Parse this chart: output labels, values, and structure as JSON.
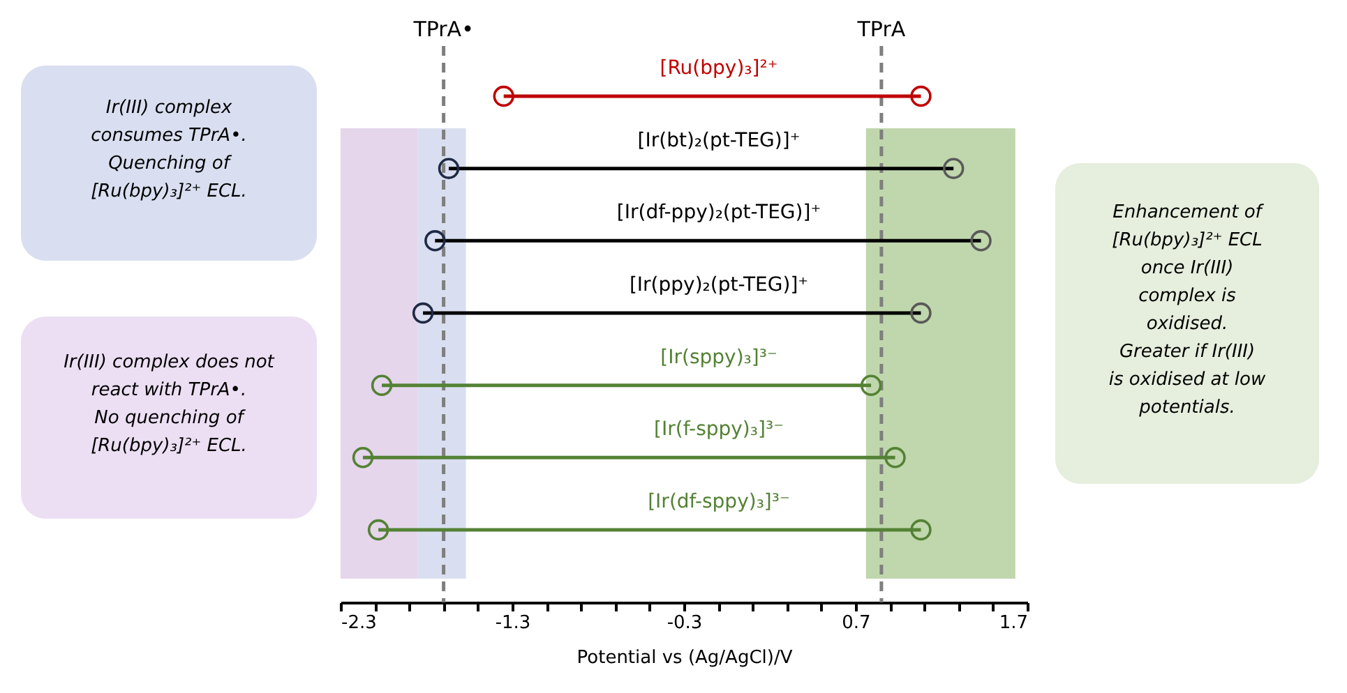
{
  "chart_data": {
    "type": "bar",
    "orientation": "horizontal",
    "marker": "circle",
    "tick_labels": "x",
    "categories": [
      "[Ru(bpy)₃]²⁺",
      "[Ir(bt)₂(pt-TEG)]⁺",
      "[Ir(df-ppy)₂(pt-TEG)]⁺",
      "[Ir(ppy)₂(pt-TEG)]⁺",
      "[Ir(sppy)₃]³⁻",
      "[Ir(f-sppy)₃]³⁻",
      "[Ir(df-sppy)₃]³⁻"
    ],
    "series": [
      {
        "base": [
          -1.35,
          -1.67,
          -1.75,
          -1.82,
          -2.06,
          -2.17,
          -2.08
        ],
        "values": [
          2.43,
          2.94,
          3.18,
          2.9,
          2.85,
          3.1,
          3.16
        ],
        "colors": [
          "#c00000",
          "#000000",
          "#000000",
          "#000000",
          "#548235",
          "#548235",
          "#548235"
        ]
      },
      {
        "type": "scatter",
        "values": [
          -1.35,
          -1.67,
          -1.75,
          -1.82,
          -2.06,
          -2.17,
          -2.08
        ],
        "colors": [
          "#c00000",
          "#1f2a44",
          "#1f2a44",
          "#1f2a44",
          "#548235",
          "#548235",
          "#548235"
        ]
      },
      {
        "type": "scatter",
        "values": [
          1.08,
          1.27,
          1.43,
          1.08,
          0.79,
          0.93,
          1.08
        ],
        "colors": [
          "#c00000",
          "#595959",
          "#595959",
          "#595959",
          "#548235",
          "#548235",
          "#548235"
        ]
      }
    ],
    "xlim": [
      -2.3,
      1.7
    ],
    "xticks": [
      -2.3,
      {
        "value": -2.1,
        "label": null
      },
      {
        "value": -1.9,
        "label": null
      },
      {
        "value": -1.7,
        "label": null
      },
      {
        "value": -1.5,
        "label": null
      },
      -1.3,
      {
        "value": -1.1,
        "label": null
      },
      {
        "value": -0.9,
        "label": null
      },
      {
        "value": -0.7,
        "label": null
      },
      {
        "value": -0.5,
        "label": null
      },
      -0.3,
      {
        "value": -0.1,
        "label": null
      },
      {
        "value": 0.1,
        "label": null
      },
      {
        "value": 0.3,
        "label": null
      },
      {
        "value": 0.5,
        "label": null
      },
      0.7,
      {
        "value": 0.9,
        "label": null
      },
      {
        "value": 1.1,
        "label": null
      },
      {
        "value": 1.3,
        "label": null
      },
      {
        "value": 1.5,
        "label": null
      },
      1.7
    ],
    "xlabel": "Potential vs (Ag/AgCl)/V",
    "ref_lines": [
      {
        "axis": "x",
        "value": -1.7,
        "label": "TPrA•",
        "color": "#7f7f7f",
        "line_style": "dashed"
      },
      {
        "axis": "x",
        "value": 0.85,
        "label": "TPrA",
        "color": "#7f7f7f",
        "line_style": "dashed"
      }
    ],
    "bands": [
      {
        "axis": "x",
        "from": -2.3,
        "to": -1.85,
        "color": "#e2d1ea"
      },
      {
        "axis": "x",
        "from": -1.85,
        "to": -1.57,
        "color": "#d5dcef"
      },
      {
        "axis": "x",
        "from": 0.76,
        "to": 1.63,
        "color": "#b9d3a4"
      }
    ],
    "annotations": [
      "Ir(III) complex consumes TPrA•.",
      "Quenching of [Ru(bpy)₃]²⁺ ECL.",
      "Ir(III) complex does not react with TPrA•.",
      "No quenching of [Ru(bpy)₃]²⁺ ECL.",
      "Enhancement of [Ru(bpy)₃]²⁺ ECL once Ir(III) complex is oxidised.",
      "Greater if Ir(III) is oxidised at low potentials."
    ]
  }
}
